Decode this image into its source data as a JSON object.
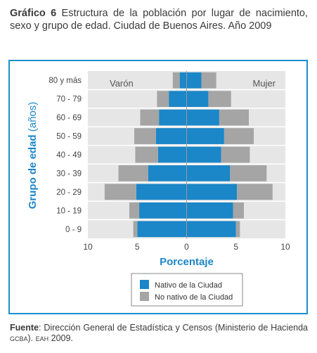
{
  "figure": {
    "label": "Gráfico 6",
    "title": "Estructura de la población por lugar de nacimiento, sexo y grupo de edad. Ciudad de Buenos Aires. Año 2009"
  },
  "source": {
    "label": "Fuente",
    "text_1": ": Dirección General de Estadística y Censos (Ministerio de Hacienda ",
    "org": "GCBA",
    "text_2": "). ",
    "survey": "EAH",
    "text_3": " 2009."
  },
  "colors": {
    "native": "#1b86c8",
    "non_native": "#a5a5a5",
    "axis_text": "#1b86c8",
    "frame": "#1a8fcf",
    "plot_bg": "#e6e6e6"
  },
  "chart_data": {
    "type": "bar",
    "subtype": "population-pyramid",
    "categories": [
      "80 y más",
      "70 - 79",
      "60 - 69",
      "50 - 59",
      "40 - 49",
      "30 - 39",
      "20 - 29",
      "10 - 19",
      "0 - 9"
    ],
    "sides": {
      "left": "Varón",
      "right": "Mujer"
    },
    "series": [
      {
        "name": "Nativo de la Ciudad",
        "color": "#1b86c8",
        "varon": [
          0.7,
          1.8,
          2.8,
          3.1,
          2.9,
          3.9,
          5.1,
          4.8,
          5.0
        ],
        "mujer": [
          1.5,
          2.2,
          3.3,
          3.8,
          3.5,
          4.4,
          5.1,
          4.7,
          5.0
        ]
      },
      {
        "name": "No nativo de la Ciudad",
        "color": "#a5a5a5",
        "varon": [
          0.7,
          1.2,
          1.9,
          2.2,
          2.3,
          3.0,
          3.2,
          1.0,
          0.4
        ],
        "mujer": [
          1.5,
          2.3,
          3.0,
          3.0,
          2.9,
          3.7,
          3.6,
          1.1,
          0.4
        ]
      }
    ],
    "xlabel": "Porcentaje",
    "ylabel": "Grupo de edad (años)",
    "xticks": [
      {
        "label": "10",
        "value": -10
      },
      {
        "label": "5",
        "value": -5
      },
      {
        "label": "0",
        "value": 0
      },
      {
        "label": "5",
        "value": 5
      },
      {
        "label": "10",
        "value": 10
      }
    ],
    "xlim": [
      -10,
      10
    ],
    "grid": true,
    "legend_position": "bottom"
  }
}
